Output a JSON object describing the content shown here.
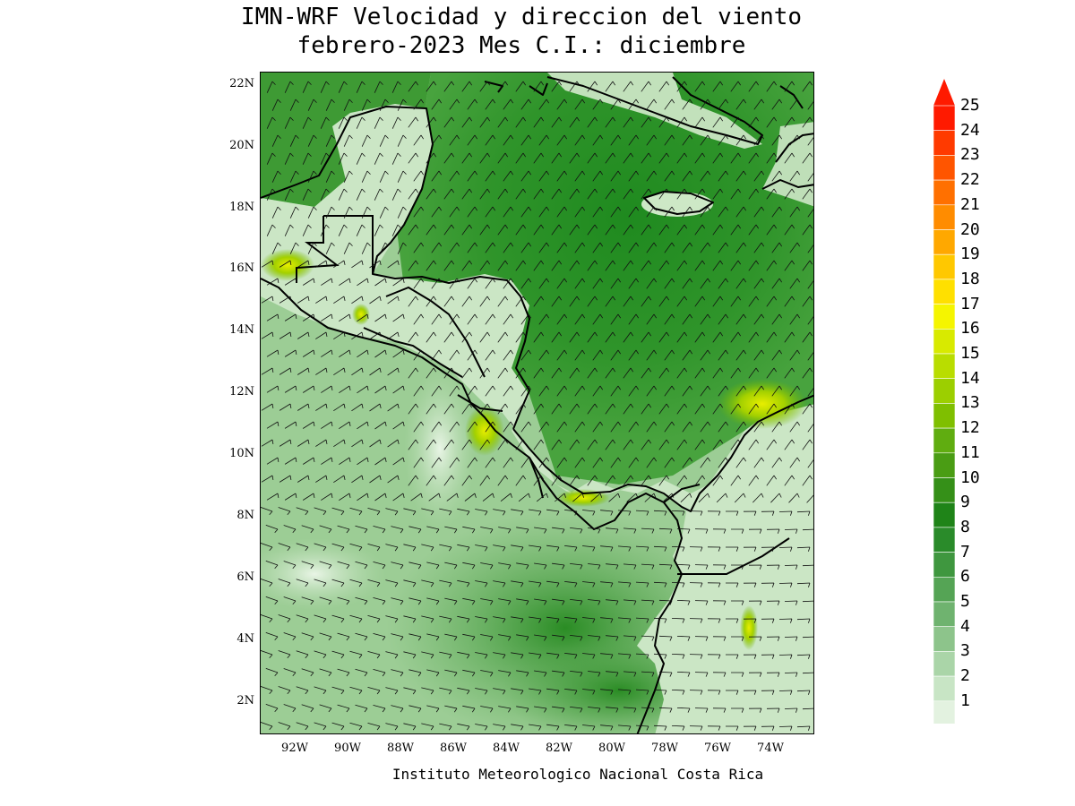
{
  "title": {
    "line1": "IMN-WRF Velocidad y direccion del viento",
    "line2": "febrero-2023 Mes C.I.: diciembre"
  },
  "credit": "Instituto Meteorologico Nacional Costa Rica",
  "map": {
    "lon_range": [
      -93,
      -72
    ],
    "lat_range": [
      1,
      22.5
    ],
    "lat_ticks": [
      "22N",
      "20N",
      "18N",
      "16N",
      "14N",
      "12N",
      "10N",
      "8N",
      "6N",
      "4N",
      "2N"
    ],
    "lon_ticks": [
      "92W",
      "90W",
      "88W",
      "86W",
      "84W",
      "82W",
      "80W",
      "78W",
      "76W",
      "74W"
    ],
    "field": "wind speed (shaded) and wind barbs",
    "colors": {
      "sea_mid": "#3f9a32",
      "sea_dark": "#2a8a22",
      "land_light": "#d9eed4",
      "coast": "#000000"
    }
  },
  "colorbar": {
    "levels": [
      "25",
      "24",
      "23",
      "22",
      "21",
      "20",
      "19",
      "18",
      "17",
      "16",
      "15",
      "14",
      "13",
      "12",
      "11",
      "10",
      "9",
      "8",
      "7",
      "6",
      "5",
      "4",
      "3",
      "2",
      "1"
    ],
    "colors": [
      "#ff1a00",
      "#ff3a00",
      "#ff5500",
      "#ff7000",
      "#ff8c00",
      "#ffa800",
      "#ffc800",
      "#ffe000",
      "#f5f500",
      "#d8ea00",
      "#b9dd00",
      "#9ccf00",
      "#7fbf00",
      "#60ad10",
      "#4a9d14",
      "#359018",
      "#1f8418",
      "#2a8b2a",
      "#3f973f",
      "#55a455",
      "#6fb36f",
      "#8dc48b",
      "#aad5a8",
      "#c8e5c5",
      "#e3f2e0"
    ]
  }
}
